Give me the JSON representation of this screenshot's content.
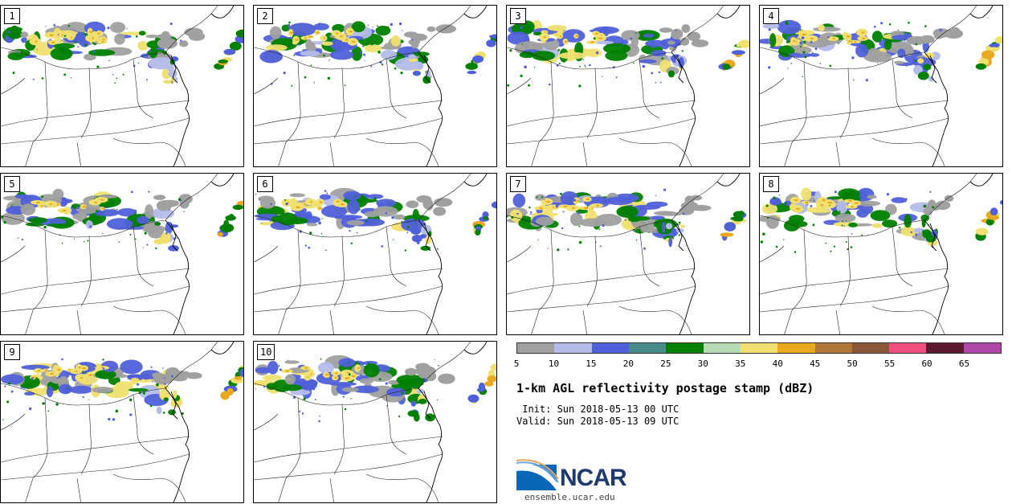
{
  "panels": [
    {
      "label": "1"
    },
    {
      "label": "2"
    },
    {
      "label": "3"
    },
    {
      "label": "4"
    },
    {
      "label": "5"
    },
    {
      "label": "6"
    },
    {
      "label": "7"
    },
    {
      "label": "8"
    },
    {
      "label": "9"
    },
    {
      "label": "10"
    }
  ],
  "colorbar": {
    "colors": [
      "#a0a0a0",
      "#b4bcea",
      "#5060d8",
      "#4a8c8c",
      "#008000",
      "#b8dcb4",
      "#f0e070",
      "#e8a820",
      "#b07838",
      "#8a5838",
      "#f05080",
      "#5c1830",
      "#b048a8"
    ],
    "ticks": [
      "5",
      "10",
      "15",
      "20",
      "25",
      "30",
      "35",
      "40",
      "45",
      "50",
      "55",
      "60",
      "65"
    ]
  },
  "title": "1-km AGL reflectivity postage stamp (dBZ)",
  "init": " Init: Sun 2018-05-13 00 UTC",
  "valid": "Valid: Sun 2018-05-13 09 UTC",
  "logo": {
    "text": "NCAR",
    "url": "ensemble.ucar.edu"
  }
}
